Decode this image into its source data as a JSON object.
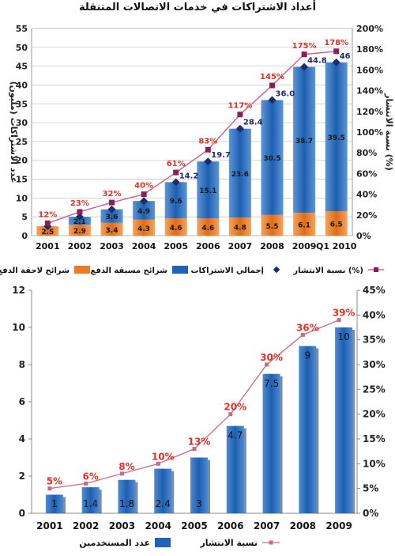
{
  "title": "أعداد الاشتراكات في خدمات الاتصالات المتنقلة",
  "colors": {
    "prepaid": "#1f63b8",
    "postpaid": "#ec7b26",
    "rate_line": "#c8698a",
    "rate_marker": "#8a1e58",
    "rate_label": "#e03226",
    "total_marker": "#1f2a6b",
    "users_bar": "#1f63b8",
    "users_line": "#c8698a",
    "users_label": "#e03226"
  },
  "chart_data": [
    {
      "type": "bar",
      "stacked": true,
      "categories": [
        "2001",
        "2002",
        "2003",
        "2004",
        "2005",
        "2006",
        "2007",
        "2008",
        "2009",
        "Q1 2010"
      ],
      "ylabel": "عدد الاشتراكات (مليون)",
      "y2label": "نسبة الانتشار (%)",
      "ylim": [
        0,
        55
      ],
      "yticks": [
        0,
        5,
        10,
        15,
        20,
        25,
        30,
        35,
        40,
        45,
        50,
        55
      ],
      "y2lim": [
        0,
        200
      ],
      "y2ticks": [
        "0%",
        "20%",
        "40%",
        "60%",
        "80%",
        "100%",
        "120%",
        "140%",
        "160%",
        "180%",
        "200%"
      ],
      "series": [
        {
          "name": "شرائح لاحقة الدفع",
          "kind": "bar",
          "values": [
            2.5,
            2.9,
            3.4,
            4.3,
            4.6,
            4.6,
            4.8,
            5.5,
            6.1,
            6.5
          ],
          "labels": [
            "2.5",
            "2.9",
            "3.4",
            "4.3",
            "4.6",
            "4.6",
            "4.8",
            "5.5",
            "6.1",
            "6.5"
          ]
        },
        {
          "name": "شرائح مسبقة الدفع",
          "kind": "bar",
          "values": [
            0,
            2.1,
            3.6,
            4.9,
            9.6,
            15.1,
            23.6,
            30.5,
            38.7,
            39.5
          ],
          "labels": [
            "",
            "2.1",
            "3.6",
            "4.9",
            "9.6",
            "15.1",
            "23.6",
            "30.5",
            "38.7",
            "39.5"
          ]
        },
        {
          "name": "إجمالي الاشتراكات",
          "kind": "marker",
          "values": [
            2.5,
            5.0,
            7.0,
            9.2,
            14.2,
            19.7,
            28.4,
            36.0,
            44.8,
            46
          ],
          "labels": [
            "",
            "",
            "",
            "",
            "14.2",
            "19.7",
            "28.4",
            "36.0",
            "44.8",
            "46"
          ]
        },
        {
          "name": "نسبة الانتشار (%)",
          "kind": "line",
          "axis": "right",
          "values": [
            12,
            23,
            32,
            40,
            61,
            83,
            117,
            145,
            175,
            178
          ],
          "labels": [
            "12%",
            "23%",
            "32%",
            "40%",
            "61%",
            "83%",
            "117%",
            "145%",
            "175%",
            "178%"
          ]
        }
      ],
      "legend": {
        "position": "bottom",
        "entries": [
          "نسبة الانتشار (%)",
          "إجمالي الاشتراكات",
          "شرائح مسبقة الدفع",
          "شرائح لاحقة الدفع"
        ]
      },
      "grid": true
    },
    {
      "type": "bar",
      "categories": [
        "2001",
        "2002",
        "2003",
        "2004",
        "2005",
        "2006",
        "2007",
        "2008",
        "2009"
      ],
      "ylim": [
        0,
        12
      ],
      "yticks": [
        0,
        2,
        4,
        6,
        8,
        10,
        12
      ],
      "y2lim": [
        0,
        45
      ],
      "y2ticks": [
        "0%",
        "5%",
        "10%",
        "15%",
        "20%",
        "25%",
        "30%",
        "35%",
        "40%",
        "45%"
      ],
      "series": [
        {
          "name": "عدد المستخدمين",
          "kind": "bar",
          "values": [
            1,
            1.4,
            1.8,
            2.4,
            3,
            4.7,
            7.5,
            9,
            10
          ],
          "labels": [
            "1",
            "1.4",
            "1.8",
            "2.4",
            "3",
            "4.7",
            "7.5",
            "9",
            "10"
          ]
        },
        {
          "name": "نسبة الانتشار",
          "kind": "line",
          "axis": "right",
          "values": [
            5,
            6,
            8,
            10,
            13,
            20,
            30,
            36,
            39
          ],
          "labels": [
            "5%",
            "6%",
            "8%",
            "10%",
            "13%",
            "20%",
            "30%",
            "36%",
            "39%"
          ]
        }
      ],
      "legend": {
        "position": "bottom",
        "entries": [
          "نسبة الانتشار",
          "عدد المستخدمين"
        ]
      },
      "grid": false
    }
  ]
}
